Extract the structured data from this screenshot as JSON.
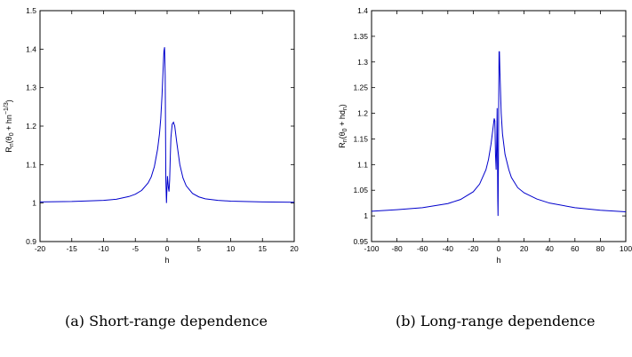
{
  "chart_data": [
    {
      "type": "line",
      "caption": "(a) Short-range dependence",
      "xlabel": "h",
      "ylabel": "R_n(θ_0 + hn^{-1/3})",
      "ylabel_parts": {
        "r": "R",
        "n": "n",
        "body": "(θ",
        "zero": "0",
        "mid": " + hn",
        "exp": "−1/3",
        "close": ")"
      },
      "xlim": [
        -20,
        20
      ],
      "ylim": [
        0.9,
        1.5
      ],
      "xticks": [
        -20,
        -15,
        -10,
        -5,
        0,
        5,
        10,
        15,
        20
      ],
      "xtick_labels": [
        "-20",
        "-15",
        "-10",
        "-5",
        "0",
        "5",
        "10",
        "15",
        "20"
      ],
      "yticks": [
        0.9,
        1,
        1.1,
        1.2,
        1.3,
        1.4,
        1.5
      ],
      "ytick_labels": [
        "0.9",
        "1",
        "1.1",
        "1.2",
        "1.3",
        "1.4",
        "1.5"
      ],
      "color": "#0000cc",
      "series": [
        {
          "x": [
            -20,
            -15,
            -10,
            -8,
            -6,
            -5,
            -4,
            -3,
            -2.5,
            -2,
            -1.5,
            -1.2,
            -1,
            -0.8,
            -0.6,
            -0.5,
            -0.4,
            -0.3,
            -0.25,
            -0.2,
            -0.1,
            0,
            0.05,
            0.1,
            0.2,
            0.3,
            0.4,
            0.5,
            0.6,
            0.8,
            1,
            1.2,
            1.5,
            2,
            2.5,
            3,
            4,
            5,
            6,
            8,
            10,
            15,
            20
          ],
          "y": [
            1.003,
            1.004,
            1.007,
            1.01,
            1.017,
            1.023,
            1.033,
            1.052,
            1.068,
            1.095,
            1.14,
            1.18,
            1.22,
            1.28,
            1.36,
            1.395,
            1.405,
            1.33,
            1.2,
            1.06,
            1.0,
            1.05,
            1.07,
            1.06,
            1.04,
            1.03,
            1.06,
            1.12,
            1.17,
            1.205,
            1.21,
            1.2,
            1.16,
            1.1,
            1.065,
            1.045,
            1.025,
            1.016,
            1.011,
            1.007,
            1.005,
            1.003,
            1.002
          ]
        }
      ]
    },
    {
      "type": "line",
      "caption": "(b) Long-range dependence",
      "xlabel": "h",
      "ylabel": "R_n(θ_0 + hd_n)",
      "ylabel_parts": {
        "r": "R",
        "n": "n",
        "body": "(θ",
        "zero": "0",
        "mid": " + hd",
        "sub2": "n",
        "close": ")"
      },
      "xlim": [
        -100,
        100
      ],
      "ylim": [
        0.95,
        1.4
      ],
      "xticks": [
        -100,
        -80,
        -60,
        -40,
        -20,
        0,
        20,
        40,
        60,
        80,
        100
      ],
      "xtick_labels": [
        "-100",
        "-80",
        "-60",
        "-40",
        "-20",
        "0",
        "20",
        "40",
        "60",
        "80",
        "100"
      ],
      "yticks": [
        0.95,
        1,
        1.05,
        1.1,
        1.15,
        1.2,
        1.25,
        1.3,
        1.35,
        1.4
      ],
      "ytick_labels": [
        "0.95",
        "1",
        "1.05",
        "1.1",
        "1.15",
        "1.2",
        "1.25",
        "1.3",
        "1.35",
        "1.4"
      ],
      "color": "#0000cc",
      "series": [
        {
          "x": [
            -100,
            -80,
            -60,
            -40,
            -30,
            -20,
            -15,
            -10,
            -8,
            -6,
            -5,
            -4,
            -3.5,
            -3,
            -2.5,
            -2,
            -1.5,
            -1.2,
            -1,
            -0.7,
            -0.5,
            -0.2,
            0,
            0.3,
            0.6,
            1,
            2,
            3,
            5,
            8,
            10,
            15,
            20,
            30,
            40,
            60,
            80,
            100
          ],
          "y": [
            1.009,
            1.012,
            1.016,
            1.024,
            1.032,
            1.047,
            1.062,
            1.09,
            1.11,
            1.14,
            1.16,
            1.18,
            1.19,
            1.185,
            1.12,
            1.09,
            1.15,
            1.21,
            1.14,
            1.03,
            1.0,
            1.1,
            1.21,
            1.32,
            1.32,
            1.28,
            1.2,
            1.16,
            1.12,
            1.09,
            1.075,
            1.055,
            1.045,
            1.033,
            1.025,
            1.016,
            1.011,
            1.008
          ]
        }
      ]
    }
  ]
}
